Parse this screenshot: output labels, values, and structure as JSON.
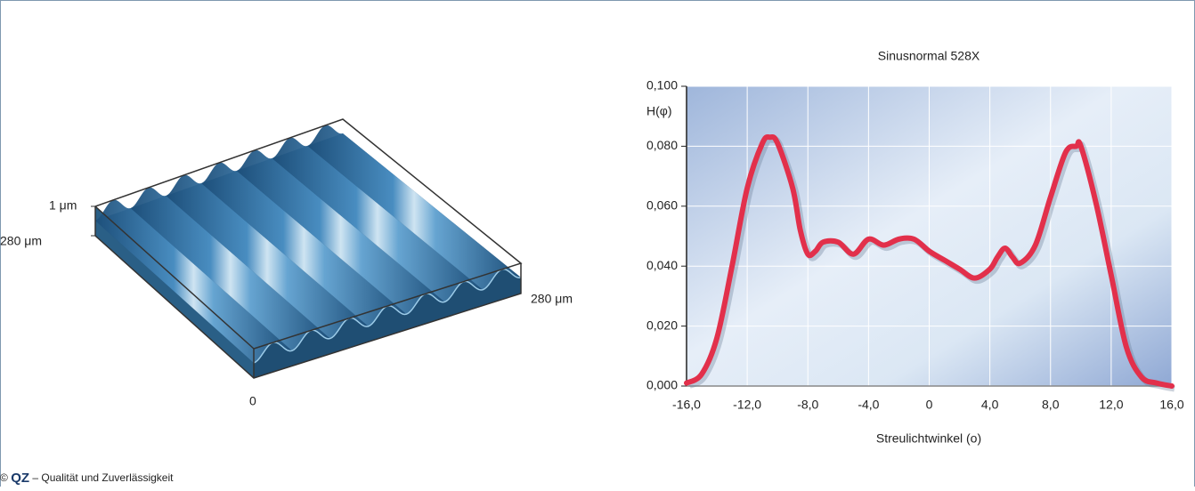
{
  "illustration": {
    "labels": [
      "1 μm",
      "280 μm",
      "280 μm",
      "0"
    ]
  },
  "chart_data": {
    "type": "line",
    "title": "Sinusnormal 528X",
    "x_label": "Streulichtwinkel (o)",
    "y_label": "H(φ)",
    "x": [
      -16,
      -15,
      -14,
      -13,
      -12,
      -11,
      -10.5,
      -10,
      -9,
      -8.5,
      -8,
      -7.5,
      -7,
      -6,
      -5,
      -4,
      -3,
      -2,
      -1,
      0,
      1,
      2,
      3,
      4,
      4.5,
      5,
      5.5,
      6,
      7,
      8,
      9,
      9.7,
      10,
      11,
      12,
      13,
      14,
      15,
      16
    ],
    "values": [
      0.001,
      0.004,
      0.016,
      0.04,
      0.066,
      0.081,
      0.083,
      0.081,
      0.066,
      0.052,
      0.044,
      0.045,
      0.048,
      0.048,
      0.044,
      0.049,
      0.047,
      0.049,
      0.049,
      0.045,
      0.042,
      0.039,
      0.036,
      0.039,
      0.043,
      0.046,
      0.043,
      0.041,
      0.047,
      0.063,
      0.078,
      0.08,
      0.08,
      0.061,
      0.037,
      0.013,
      0.003,
      0.001,
      0.0
    ],
    "color": "#e2304b",
    "xlim": [
      -16,
      16
    ],
    "ylim": [
      0,
      0.1
    ],
    "xticks": [
      {
        "value": -16,
        "label": "-16,0"
      },
      {
        "value": -12,
        "label": "-12,0"
      },
      {
        "value": -8,
        "label": "-8,0"
      },
      {
        "value": -4,
        "label": "-4,0"
      },
      0,
      {
        "value": 4,
        "label": "4,0"
      },
      {
        "value": 8,
        "label": "8,0"
      },
      {
        "value": 12,
        "label": "12,0"
      },
      {
        "value": 16,
        "label": "16,0"
      }
    ],
    "yticks": [
      {
        "value": 0,
        "label": "0,000"
      },
      {
        "value": 0.02,
        "label": "0,020"
      },
      {
        "value": 0.04,
        "label": "0,040"
      },
      {
        "value": 0.06,
        "label": "0,060"
      },
      {
        "value": 0.08,
        "label": "0,080"
      },
      {
        "value": 0.1,
        "label": "0,100"
      }
    ],
    "grid": true
  },
  "footer": {
    "symbol": "©",
    "brand": "QZ",
    "text": "– Qualität und Zuverlässigkeit"
  }
}
